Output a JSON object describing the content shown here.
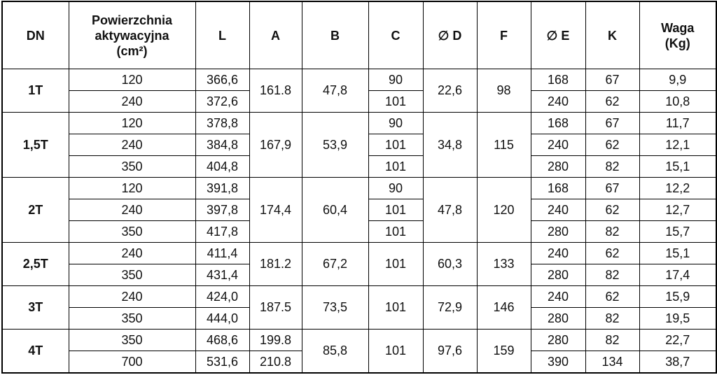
{
  "table": {
    "header": [
      "DN",
      "Powierzchnia aktywacyjna (cm²)",
      "L",
      "A",
      "B",
      "C",
      "∅ D",
      "F",
      "∅ E",
      "K",
      "Waga (Kg)"
    ],
    "groups": [
      {
        "dn": "1T",
        "cells": [
          [
            "120",
            "240"
          ],
          [
            "366,6",
            "372,6"
          ],
          "161.8",
          "47,8",
          [
            "90",
            "101"
          ],
          "22,6",
          "98",
          [
            "168",
            "240"
          ],
          [
            "67",
            "62"
          ],
          [
            "9,9",
            "10,8"
          ]
        ]
      },
      {
        "dn": "1,5T",
        "cells": [
          [
            "120",
            "240",
            "350"
          ],
          [
            "378,8",
            "384,8",
            "404,8"
          ],
          "167,9",
          "53,9",
          [
            "90",
            "101",
            "101"
          ],
          "34,8",
          "115",
          [
            "168",
            "240",
            "280"
          ],
          [
            "67",
            "62",
            "82"
          ],
          [
            "11,7",
            "12,1",
            "15,1"
          ]
        ]
      },
      {
        "dn": "2T",
        "cells": [
          [
            "120",
            "240",
            "350"
          ],
          [
            "391,8",
            "397,8",
            "417,8"
          ],
          "174,4",
          "60,4",
          [
            "90",
            "101",
            "101"
          ],
          "47,8",
          "120",
          [
            "168",
            "240",
            "280"
          ],
          [
            "67",
            "62",
            "82"
          ],
          [
            "12,2",
            "12,7",
            "15,7"
          ]
        ]
      },
      {
        "dn": "2,5T",
        "cells": [
          [
            "240",
            "350"
          ],
          [
            "411,4",
            "431,4"
          ],
          "181.2",
          "67,2",
          "101",
          "60,3",
          "133",
          [
            "240",
            "280"
          ],
          [
            "62",
            "82"
          ],
          [
            "15,1",
            "17,4"
          ]
        ]
      },
      {
        "dn": "3T",
        "cells": [
          [
            "240",
            "350"
          ],
          [
            "424,0",
            "444,0"
          ],
          "187.5",
          "73,5",
          "101",
          "72,9",
          "146",
          [
            "240",
            "280"
          ],
          [
            "62",
            "82"
          ],
          [
            "15,9",
            "19,5"
          ]
        ]
      },
      {
        "dn": "4T",
        "cells": [
          [
            "350",
            "700"
          ],
          [
            "468,6",
            "531,6"
          ],
          [
            "199.8",
            "210.8"
          ],
          "85,8",
          "101",
          "97,6",
          "159",
          [
            "280",
            "390"
          ],
          [
            "82",
            "134"
          ],
          [
            "22,7",
            "38,7"
          ]
        ]
      }
    ]
  }
}
